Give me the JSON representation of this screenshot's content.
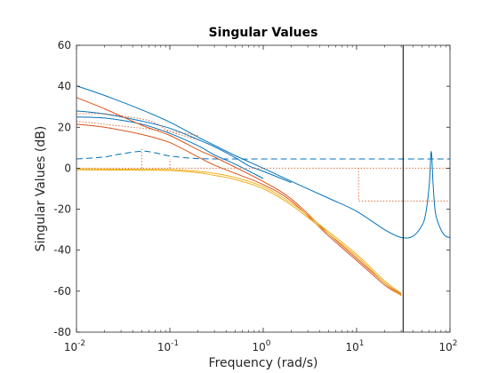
{
  "chart_data": {
    "type": "line",
    "title": "Singular Values",
    "xlabel": "Frequency (rad/s)",
    "ylabel": "Singular Values (dB)",
    "xscale": "log",
    "xlim": [
      0.01,
      100
    ],
    "ylim": [
      -80,
      60
    ],
    "grid": false,
    "x_ticks": [
      {
        "value": 0.01,
        "base": "10",
        "exp": "-2"
      },
      {
        "value": 0.1,
        "base": "10",
        "exp": "-1"
      },
      {
        "value": 1,
        "base": "10",
        "exp": "0"
      },
      {
        "value": 10,
        "base": "10",
        "exp": "1"
      },
      {
        "value": 100,
        "base": "10",
        "exp": "2"
      }
    ],
    "y_ticks": [
      -80,
      -60,
      -40,
      -20,
      0,
      20,
      40,
      60
    ],
    "y_tick_labels": [
      "-80",
      "-60",
      "-40",
      "-20",
      "0",
      "20",
      "40",
      "60"
    ],
    "colors": {
      "blue": "#0072BD",
      "red": "#D95319",
      "yellow": "#EDB120",
      "black": "#000000",
      "axis": "#262626"
    },
    "series": [
      {
        "color": "blue",
        "style": "solid",
        "points": [
          [
            0.01,
            40.2
          ],
          [
            0.02,
            35.5
          ],
          [
            0.05,
            28.5
          ],
          [
            0.1,
            22.5
          ],
          [
            0.2,
            15.2
          ],
          [
            0.3,
            11.2
          ],
          [
            0.5,
            6.2
          ],
          [
            1,
            0
          ],
          [
            2,
            -6.4
          ],
          [
            5,
            -14.6
          ],
          [
            10,
            -21
          ],
          [
            20,
            -30
          ],
          [
            30,
            -33.8
          ],
          [
            40,
            -33.2
          ],
          [
            50,
            -28
          ],
          [
            55,
            -22
          ],
          [
            60,
            -8
          ],
          [
            63,
            8.3
          ],
          [
            66,
            -8
          ],
          [
            70,
            -22
          ],
          [
            80,
            -30
          ],
          [
            90,
            -33.2
          ],
          [
            100,
            -33.8
          ]
        ]
      },
      {
        "color": "blue",
        "style": "solid",
        "points": [
          [
            0.01,
            28
          ],
          [
            0.02,
            26.5
          ],
          [
            0.05,
            23
          ],
          [
            0.1,
            19.5
          ],
          [
            0.2,
            14
          ],
          [
            0.3,
            10.5
          ],
          [
            0.5,
            5.2
          ],
          [
            0.7,
            1.2
          ],
          [
            1,
            -1.5
          ],
          [
            2,
            -7
          ]
        ]
      },
      {
        "color": "blue",
        "style": "solid",
        "points": [
          [
            0.01,
            25
          ],
          [
            0.02,
            24.5
          ],
          [
            0.05,
            21.5
          ],
          [
            0.1,
            17
          ],
          [
            0.2,
            11
          ],
          [
            0.3,
            6.5
          ],
          [
            0.5,
            2
          ],
          [
            1,
            -5
          ]
        ]
      },
      {
        "color": "blue",
        "style": "dashed",
        "points": [
          [
            0.01,
            4.5
          ],
          [
            0.02,
            5.5
          ],
          [
            0.03,
            7
          ],
          [
            0.05,
            8.3
          ],
          [
            0.07,
            7.5
          ],
          [
            0.1,
            6
          ],
          [
            0.2,
            4.7
          ],
          [
            0.5,
            4.5
          ],
          [
            1,
            4.5
          ],
          [
            10,
            4.5
          ],
          [
            100,
            4.5
          ]
        ]
      },
      {
        "color": "red",
        "style": "solid",
        "points": [
          [
            0.01,
            34.5
          ],
          [
            0.02,
            29
          ],
          [
            0.05,
            21
          ],
          [
            0.1,
            16
          ],
          [
            0.2,
            9
          ],
          [
            0.3,
            5.5
          ],
          [
            0.5,
            0.5
          ],
          [
            1,
            -6.5
          ],
          [
            2,
            -15
          ],
          [
            5,
            -32
          ],
          [
            10,
            -44
          ],
          [
            20,
            -56
          ],
          [
            30,
            -61.5
          ]
        ]
      },
      {
        "color": "red",
        "style": "solid",
        "points": [
          [
            0.01,
            21.5
          ],
          [
            0.02,
            20
          ],
          [
            0.05,
            16.5
          ],
          [
            0.1,
            12.5
          ],
          [
            0.2,
            5.5
          ],
          [
            0.3,
            1.5
          ],
          [
            0.5,
            -2.5
          ],
          [
            1,
            -8
          ],
          [
            2,
            -16
          ],
          [
            5,
            -33
          ],
          [
            10,
            -45
          ],
          [
            20,
            -57
          ],
          [
            30,
            -62
          ]
        ]
      },
      {
        "color": "red",
        "style": "dotted",
        "points": [
          [
            0.01,
            26.5
          ],
          [
            0.02,
            26.5
          ],
          [
            0.05,
            24
          ],
          [
            0.07,
            22
          ],
          [
            0.1,
            18
          ],
          [
            0.15,
            15.5
          ],
          [
            0.2,
            14
          ]
        ]
      },
      {
        "color": "red",
        "style": "dotted",
        "points": [
          [
            0.01,
            23
          ],
          [
            0.05,
            19.5
          ],
          [
            0.1,
            18
          ],
          [
            0.15,
            17
          ],
          [
            0.2,
            16
          ]
        ]
      },
      {
        "color": "red",
        "style": "dotted",
        "points": [
          [
            0.01,
            0
          ],
          [
            100,
            0
          ]
        ]
      },
      {
        "color": "red",
        "style": "dotted",
        "points": [
          [
            0.05,
            0
          ],
          [
            0.05,
            10
          ]
        ]
      },
      {
        "color": "red",
        "style": "dotted",
        "points": [
          [
            0.1,
            0
          ],
          [
            0.1,
            4.5
          ]
        ]
      },
      {
        "color": "red",
        "style": "dotted",
        "points": [
          [
            10.5,
            0
          ],
          [
            10.5,
            -16
          ],
          [
            100,
            -16
          ]
        ]
      },
      {
        "color": "yellow",
        "style": "solid",
        "points": [
          [
            0.01,
            -0.3
          ],
          [
            0.05,
            -0.5
          ],
          [
            0.1,
            -0.6
          ],
          [
            0.2,
            -1.5
          ],
          [
            0.3,
            -2.5
          ],
          [
            0.5,
            -4.5
          ],
          [
            1,
            -9
          ],
          [
            2,
            -17
          ],
          [
            5,
            -31
          ],
          [
            10,
            -42
          ],
          [
            20,
            -55
          ],
          [
            30,
            -61
          ]
        ]
      },
      {
        "color": "yellow",
        "style": "solid",
        "points": [
          [
            0.01,
            -0.8
          ],
          [
            0.05,
            -1
          ],
          [
            0.1,
            -1.1
          ],
          [
            0.2,
            -2.2
          ],
          [
            0.3,
            -3.5
          ],
          [
            0.5,
            -5.5
          ],
          [
            1,
            -10
          ],
          [
            2,
            -18
          ],
          [
            5,
            -32
          ],
          [
            10,
            -43
          ],
          [
            20,
            -56
          ],
          [
            30,
            -62.2
          ]
        ]
      },
      {
        "color": "black",
        "style": "solid",
        "points": [
          [
            31.5,
            -80
          ],
          [
            31.5,
            60
          ]
        ]
      }
    ]
  }
}
